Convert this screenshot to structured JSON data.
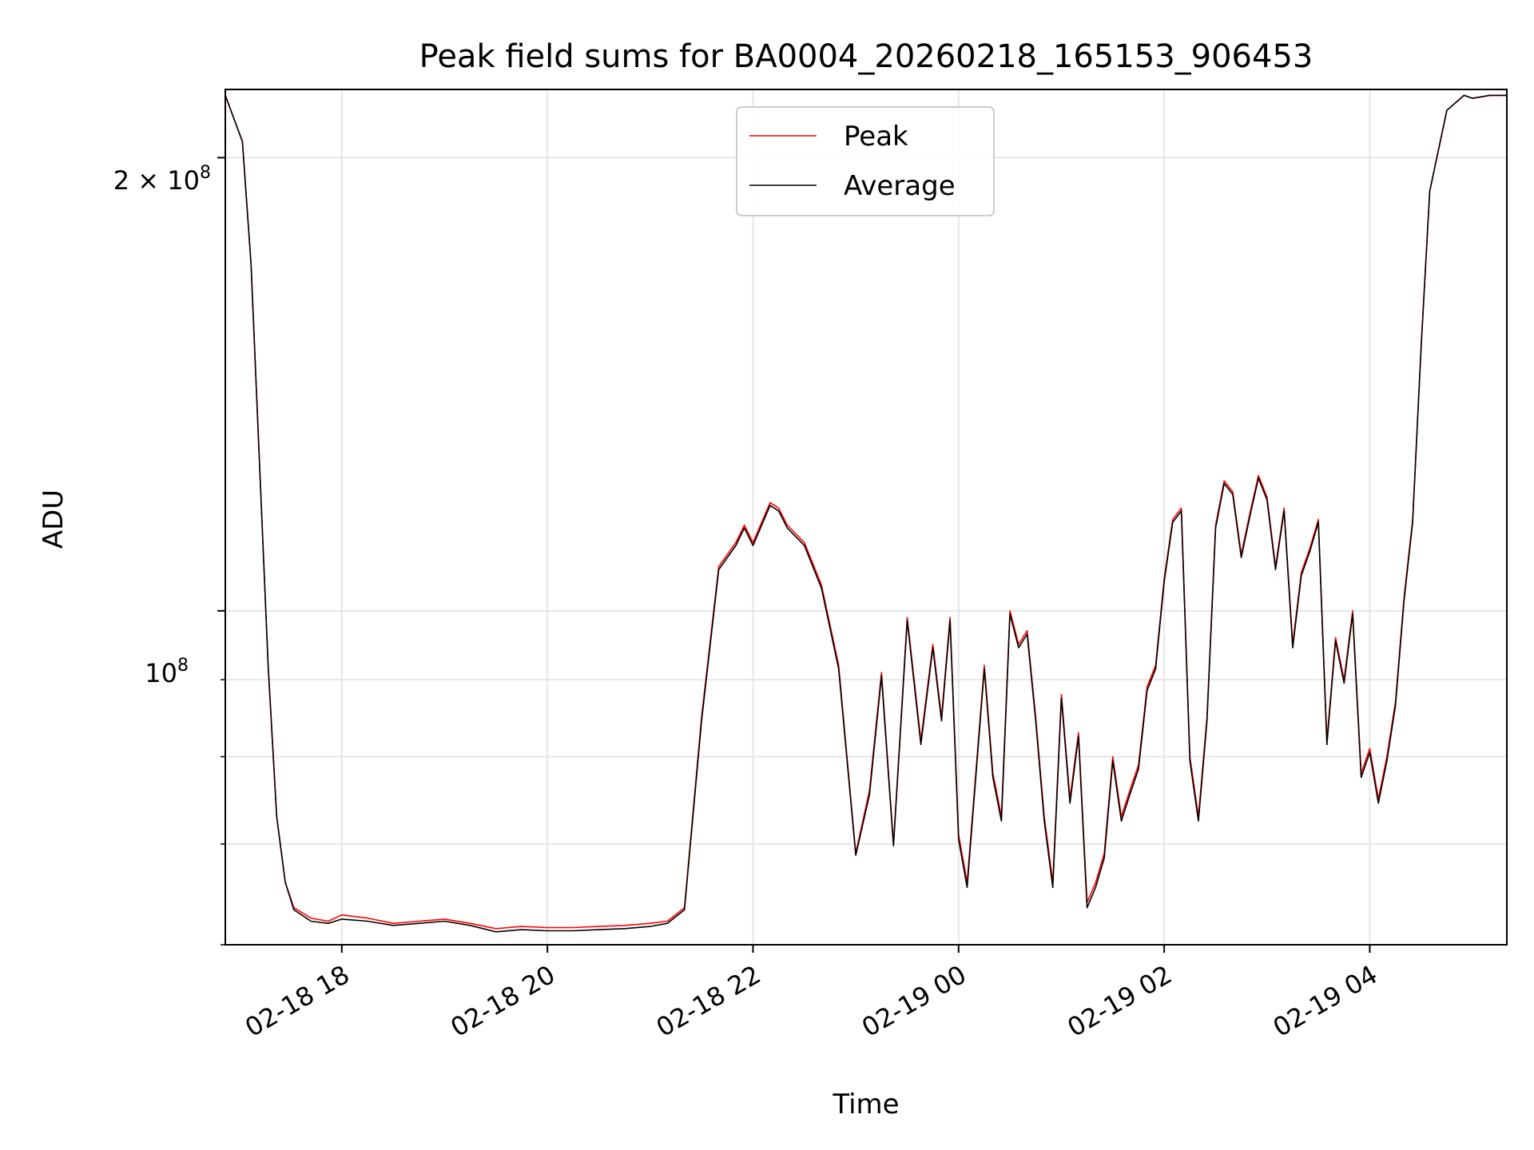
{
  "chart_data": {
    "type": "line",
    "title": "Peak field sums for BA0004_20260218_165153_906453",
    "xlabel": "Time",
    "ylabel": "ADU",
    "x_tick_labels": [
      "02-18 18",
      "02-18 20",
      "02-18 22",
      "02-19 00",
      "02-19 02",
      "02-19 04"
    ],
    "y_tick_labels": {
      "major_1": "10",
      "major_1_exp": "8",
      "major_2": "2 × 10",
      "major_2_exp": "8"
    },
    "y_scale": "log",
    "grid": true,
    "legend_position": "top-center",
    "series": [
      {
        "name": "Peak",
        "color": "#ff0000",
        "x": [
          "02-18 16:52",
          "02-18 17:02",
          "02-18 17:07",
          "02-18 17:12",
          "02-18 17:17",
          "02-18 17:22",
          "02-18 17:27",
          "02-18 17:32",
          "02-18 17:42",
          "02-18 17:52",
          "02-18 18:00",
          "02-18 18:15",
          "02-18 18:30",
          "02-18 18:45",
          "02-18 19:00",
          "02-18 19:15",
          "02-18 19:30",
          "02-18 19:45",
          "02-18 20:00",
          "02-18 20:15",
          "02-18 20:30",
          "02-18 20:45",
          "02-18 21:00",
          "02-18 21:10",
          "02-18 21:20",
          "02-18 21:30",
          "02-18 21:40",
          "02-18 21:50",
          "02-18 21:55",
          "02-18 22:00",
          "02-18 22:10",
          "02-18 22:15",
          "02-18 22:20",
          "02-18 22:30",
          "02-18 22:40",
          "02-18 22:50",
          "02-18 23:00",
          "02-18 23:08",
          "02-18 23:15",
          "02-18 23:22",
          "02-18 23:30",
          "02-18 23:38",
          "02-18 23:45",
          "02-18 23:50",
          "02-18 23:55",
          "02-19 00:00",
          "02-19 00:05",
          "02-19 00:15",
          "02-19 00:20",
          "02-19 00:25",
          "02-19 00:30",
          "02-19 00:35",
          "02-19 00:40",
          "02-19 00:45",
          "02-19 00:50",
          "02-19 00:55",
          "02-19 01:00",
          "02-19 01:05",
          "02-19 01:10",
          "02-19 01:15",
          "02-19 01:20",
          "02-19 01:25",
          "02-19 01:30",
          "02-19 01:35",
          "02-19 01:40",
          "02-19 01:45",
          "02-19 01:50",
          "02-19 01:55",
          "02-19 02:00",
          "02-19 02:05",
          "02-19 02:10",
          "02-19 02:15",
          "02-19 02:20",
          "02-19 02:25",
          "02-19 02:30",
          "02-19 02:35",
          "02-19 02:40",
          "02-19 02:45",
          "02-19 02:50",
          "02-19 02:55",
          "02-19 03:00",
          "02-19 03:05",
          "02-19 03:10",
          "02-19 03:15",
          "02-19 03:20",
          "02-19 03:25",
          "02-19 03:30",
          "02-19 03:35",
          "02-19 03:40",
          "02-19 03:45",
          "02-19 03:50",
          "02-19 03:55",
          "02-19 04:00",
          "02-19 04:05",
          "02-19 04:10",
          "02-19 04:15",
          "02-19 04:20",
          "02-19 04:25",
          "02-19 04:30",
          "02-19 04:35",
          "02-19 04:45",
          "02-19 04:55",
          "02-19 05:00",
          "02-19 05:10",
          "02-19 05:20"
        ],
        "y": [
          220000000.0,
          205000000.0,
          170000000.0,
          125000000.0,
          92000000.0,
          73000000.0,
          66000000.0,
          63500000.0,
          62500000.0,
          62200000.0,
          62800000.0,
          62500000.0,
          62000000.0,
          62200000.0,
          62400000.0,
          62000000.0,
          61500000.0,
          61700000.0,
          61600000.0,
          61600000.0,
          61700000.0,
          61800000.0,
          62000000.0,
          62200000.0,
          63500000.0,
          85000000.0,
          107000000.0,
          111000000.0,
          114000000.0,
          111000000.0,
          118000000.0,
          117000000.0,
          114000000.0,
          111000000.0,
          104000000.0,
          92000000.0,
          69000000.0,
          76000000.0,
          91000000.0,
          70000000.0,
          99000000.0,
          82000000.0,
          95000000.0,
          85000000.0,
          99000000.0,
          71000000.0,
          66000000.0,
          92000000.0,
          78000000.0,
          73000000.0,
          100000000.0,
          95000000.0,
          97000000.0,
          85000000.0,
          73000000.0,
          66000000.0,
          88000000.0,
          75000000.0,
          83000000.0,
          64000000.0,
          66000000.0,
          69000000.0,
          80000000.0,
          73000000.0,
          76000000.0,
          79000000.0,
          89000000.0,
          92000000.0,
          105000000.0,
          115000000.0,
          117000000.0,
          80000000.0,
          73000000.0,
          85000000.0,
          114000000.0,
          122000000.0,
          120000000.0,
          109000000.0,
          116000000.0,
          123000000.0,
          119000000.0,
          107000000.0,
          117000000.0,
          95000000.0,
          106000000.0,
          110000000.0,
          115000000.0,
          82000000.0,
          96000000.0,
          90000000.0,
          100000000.0,
          78000000.0,
          81000000.0,
          75000000.0,
          80000000.0,
          87000000.0,
          102000000.0,
          115000000.0,
          150000000.0,
          190000000.0,
          215000000.0,
          220000000.0,
          219000000.0,
          220000000.0,
          220000000.0
        ]
      },
      {
        "name": "Average",
        "color": "#000000",
        "x": [
          "02-18 16:52",
          "02-18 17:02",
          "02-18 17:07",
          "02-18 17:12",
          "02-18 17:17",
          "02-18 17:22",
          "02-18 17:27",
          "02-18 17:32",
          "02-18 17:42",
          "02-18 17:52",
          "02-18 18:00",
          "02-18 18:15",
          "02-18 18:30",
          "02-18 18:45",
          "02-18 19:00",
          "02-18 19:15",
          "02-18 19:30",
          "02-18 19:45",
          "02-18 20:00",
          "02-18 20:15",
          "02-18 20:30",
          "02-18 20:45",
          "02-18 21:00",
          "02-18 21:10",
          "02-18 21:20",
          "02-18 21:30",
          "02-18 21:40",
          "02-18 21:50",
          "02-18 21:55",
          "02-18 22:00",
          "02-18 22:10",
          "02-18 22:15",
          "02-18 22:20",
          "02-18 22:30",
          "02-18 22:40",
          "02-18 22:50",
          "02-18 23:00",
          "02-18 23:08",
          "02-18 23:15",
          "02-18 23:22",
          "02-18 23:30",
          "02-18 23:38",
          "02-18 23:45",
          "02-18 23:50",
          "02-18 23:55",
          "02-19 00:00",
          "02-19 00:05",
          "02-19 00:15",
          "02-19 00:20",
          "02-19 00:25",
          "02-19 00:30",
          "02-19 00:35",
          "02-19 00:40",
          "02-19 00:45",
          "02-19 00:50",
          "02-19 00:55",
          "02-19 01:00",
          "02-19 01:05",
          "02-19 01:10",
          "02-19 01:15",
          "02-19 01:20",
          "02-19 01:25",
          "02-19 01:30",
          "02-19 01:35",
          "02-19 01:40",
          "02-19 01:45",
          "02-19 01:50",
          "02-19 01:55",
          "02-19 02:00",
          "02-19 02:05",
          "02-19 02:10",
          "02-19 02:15",
          "02-19 02:20",
          "02-19 02:25",
          "02-19 02:30",
          "02-19 02:35",
          "02-19 02:40",
          "02-19 02:45",
          "02-19 02:50",
          "02-19 02:55",
          "02-19 03:00",
          "02-19 03:05",
          "02-19 03:10",
          "02-19 03:15",
          "02-19 03:20",
          "02-19 03:25",
          "02-19 03:30",
          "02-19 03:35",
          "02-19 03:40",
          "02-19 03:45",
          "02-19 03:50",
          "02-19 03:55",
          "02-19 04:00",
          "02-19 04:05",
          "02-19 04:10",
          "02-19 04:15",
          "02-19 04:20",
          "02-19 04:25",
          "02-19 04:30",
          "02-19 04:35",
          "02-19 04:45",
          "02-19 04:55",
          "02-19 05:00",
          "02-19 05:10",
          "02-19 05:20"
        ],
        "y": [
          220000000.0,
          205000000.0,
          170000000.0,
          125000000.0,
          92000000.0,
          73000000.0,
          66000000.0,
          63300000.0,
          62200000.0,
          62000000.0,
          62400000.0,
          62200000.0,
          61800000.0,
          62000000.0,
          62200000.0,
          61800000.0,
          61200000.0,
          61400000.0,
          61300000.0,
          61300000.0,
          61400000.0,
          61500000.0,
          61700000.0,
          62000000.0,
          63300000.0,
          84500000.0,
          106500000.0,
          110500000.0,
          113500000.0,
          110500000.0,
          117500000.0,
          116500000.0,
          113500000.0,
          110500000.0,
          103500000.0,
          91500000.0,
          68800000.0,
          75500000.0,
          90500000.0,
          69800000.0,
          98500000.0,
          81500000.0,
          94500000.0,
          84500000.0,
          98500000.0,
          70500000.0,
          65500000.0,
          91500000.0,
          77500000.0,
          72500000.0,
          99500000.0,
          94500000.0,
          96500000.0,
          84500000.0,
          72500000.0,
          65500000.0,
          87500000.0,
          74500000.0,
          82500000.0,
          63500000.0,
          65500000.0,
          68500000.0,
          79500000.0,
          72500000.0,
          75500000.0,
          78500000.0,
          88500000.0,
          91500000.0,
          104500000.0,
          114500000.0,
          116500000.0,
          79500000.0,
          72500000.0,
          84500000.0,
          113500000.0,
          121500000.0,
          119500000.0,
          108500000.0,
          115500000.0,
          122500000.0,
          118500000.0,
          106500000.0,
          116500000.0,
          94500000.0,
          105500000.0,
          109500000.0,
          114500000.0,
          81500000.0,
          95500000.0,
          89500000.0,
          99500000.0,
          77500000.0,
          80500000.0,
          74500000.0,
          79500000.0,
          86500000.0,
          101500000.0,
          114500000.0,
          150000000.0,
          190000000.0,
          215000000.0,
          220000000.0,
          219000000.0,
          220000000.0,
          220000000.0
        ]
      }
    ],
    "x_range": [
      "02-18 16:52",
      "02-19 05:20"
    ],
    "y_range": [
      60000000,
      222000000
    ]
  }
}
